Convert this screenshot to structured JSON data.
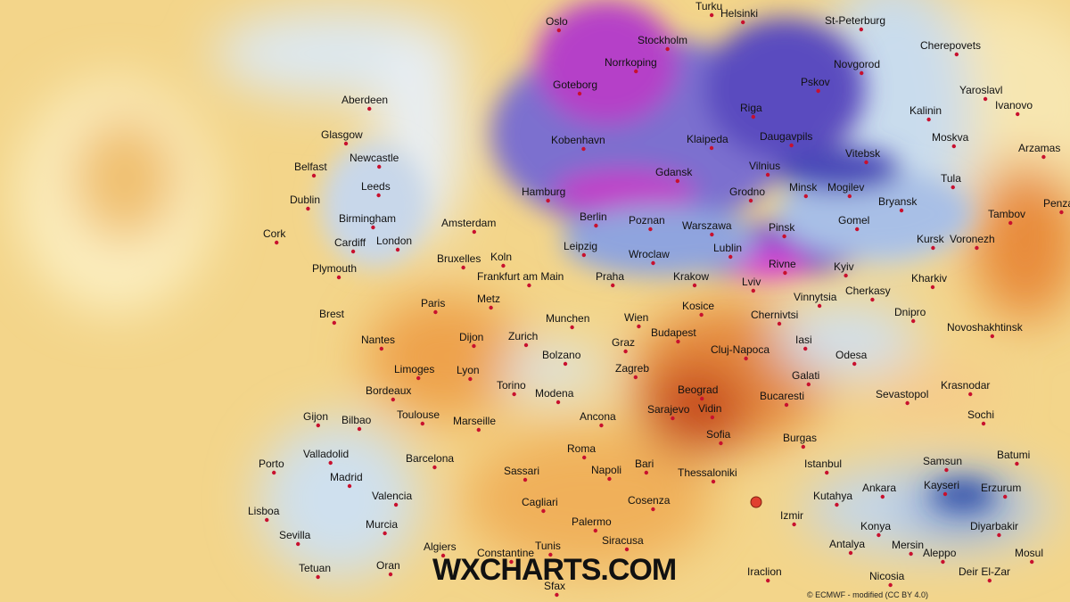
{
  "watermark": "WXCHARTS.COM",
  "credit": "© ECMWF - modified (CC BY 4.0)",
  "cities": [
    "Oslo",
    "Turku",
    "Helsinki",
    "St-Peterburg",
    "Stockholm",
    "Norrkoping",
    "Goteborg",
    "Novgorod",
    "Pskov",
    "Cherepovets",
    "Yaroslavl",
    "Ivanovo",
    "Kalinin",
    "Moskva",
    "Arzamas",
    "Tula",
    "Tambov",
    "Penza",
    "Aberdeen",
    "Glasgow",
    "Newcastle",
    "Belfast",
    "Leeds",
    "Dublin",
    "Birmingham",
    "Cork",
    "Cardiff",
    "London",
    "Plymouth",
    "Kobenhavn",
    "Riga",
    "Klaipeda",
    "Daugavpils",
    "Vitebsk",
    "Vilnius",
    "Gdansk",
    "Hamburg",
    "Grodno",
    "Minsk",
    "Mogilev",
    "Bryansk",
    "Amsterdam",
    "Berlin",
    "Poznan",
    "Warszawa",
    "Pinsk",
    "Gomel",
    "Kursk",
    "Voronezh",
    "Leipzig",
    "Bruxelles",
    "Koln",
    "Wroclaw",
    "Lublin",
    "Rivne",
    "Kyiv",
    "Frankfurt am Main",
    "Praha",
    "Krakow",
    "Lviv",
    "Kharkiv",
    "Paris",
    "Metz",
    "Vinnytsia",
    "Cherkasy",
    "Dnipro",
    "Brest",
    "Munchen",
    "Wien",
    "Kosice",
    "Chernivtsi",
    "Novoshakhtinsk",
    "Nantes",
    "Dijon",
    "Zurich",
    "Graz",
    "Budapest",
    "Cluj-Napoca",
    "Iasi",
    "Odesa",
    "Limoges",
    "Lyon",
    "Bolzano",
    "Zagreb",
    "Galati",
    "Krasnodar",
    "Bordeaux",
    "Torino",
    "Modena",
    "Beograd",
    "Bucaresti",
    "Sevastopol",
    "Sarajevo",
    "Vidin",
    "Sochi",
    "Gijon",
    "Bilbao",
    "Toulouse",
    "Marseille",
    "Ancona",
    "Sofia",
    "Burgas",
    "Batumi",
    "Valladolid",
    "Barcelona",
    "Roma",
    "Bari",
    "Istanbul",
    "Samsun",
    "Porto",
    "Madrid",
    "Sassari",
    "Napoli",
    "Thessaloniki",
    "Erzurum",
    "Ankara",
    "Kutahya",
    "Kayseri",
    "Valencia",
    "Cagliari",
    "Cosenza",
    "Lisboa",
    "Izmir",
    "Murcia",
    "Palermo",
    "Konya",
    "Diyarbakir",
    "Sevilla",
    "Siracusa",
    "Antalya",
    "Mersin",
    "Algiers",
    "Tunis",
    "Constantine",
    "Aleppo",
    "Mosul",
    "Tetuan",
    "Oran",
    "Iraclion",
    "Nicosia",
    "Deir El-Zar",
    "Sfax"
  ]
}
